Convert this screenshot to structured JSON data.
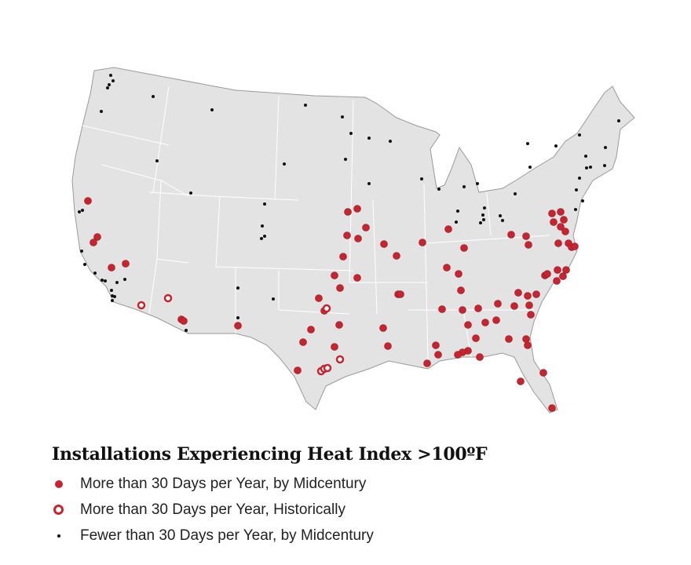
{
  "legend": {
    "title": "Installations Experiencing Heat Index >100ºF",
    "items": [
      {
        "label": "More than 30 Days per Year, by Midcentury",
        "symbol": "filled-red-circle"
      },
      {
        "label": "More than 30 Days per Year, Historically",
        "symbol": "open-red-circle"
      },
      {
        "label": "Fewer than 30 Days per Year, by Midcentury",
        "symbol": "small-black-dot"
      }
    ]
  },
  "colors": {
    "land": "#e3e3e4",
    "border": "#9a9a9a",
    "red": "#c8242f",
    "black": "#111111"
  }
}
